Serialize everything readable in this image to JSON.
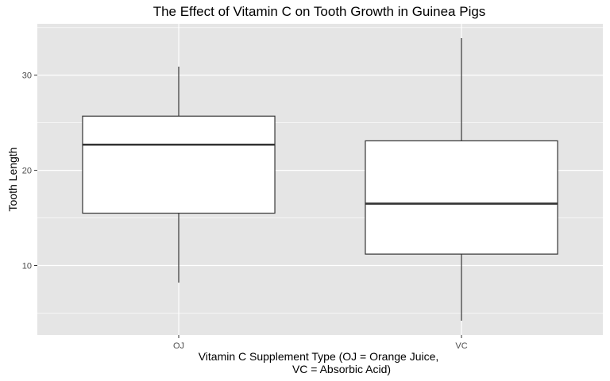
{
  "chart_data": {
    "type": "boxplot",
    "title": "The Effect of Vitamin C on Tooth Growth in Guinea Pigs",
    "xlabel_lines": [
      "Vitamin C Supplement Type (OJ = Orange Juice,",
      "VC = Absorbic Acid)"
    ],
    "ylabel": "Tooth Length",
    "categories": [
      "OJ",
      "VC"
    ],
    "boxes": [
      {
        "category": "OJ",
        "min": 8.2,
        "q1": 15.5,
        "median": 22.7,
        "q3": 25.7,
        "max": 30.9
      },
      {
        "category": "VC",
        "min": 4.2,
        "q1": 11.2,
        "median": 16.5,
        "q3": 23.1,
        "max": 33.9
      }
    ],
    "ylim": [
      2.7,
      35.4
    ],
    "yticks": [
      10,
      20,
      30
    ],
    "ytick_labels": [
      "10",
      "20",
      "30"
    ],
    "grid": true,
    "colors": {
      "panel": "#e5e5e5",
      "grid": "#ffffff",
      "box_fill": "#ffffff",
      "box_stroke": "#333333"
    }
  }
}
